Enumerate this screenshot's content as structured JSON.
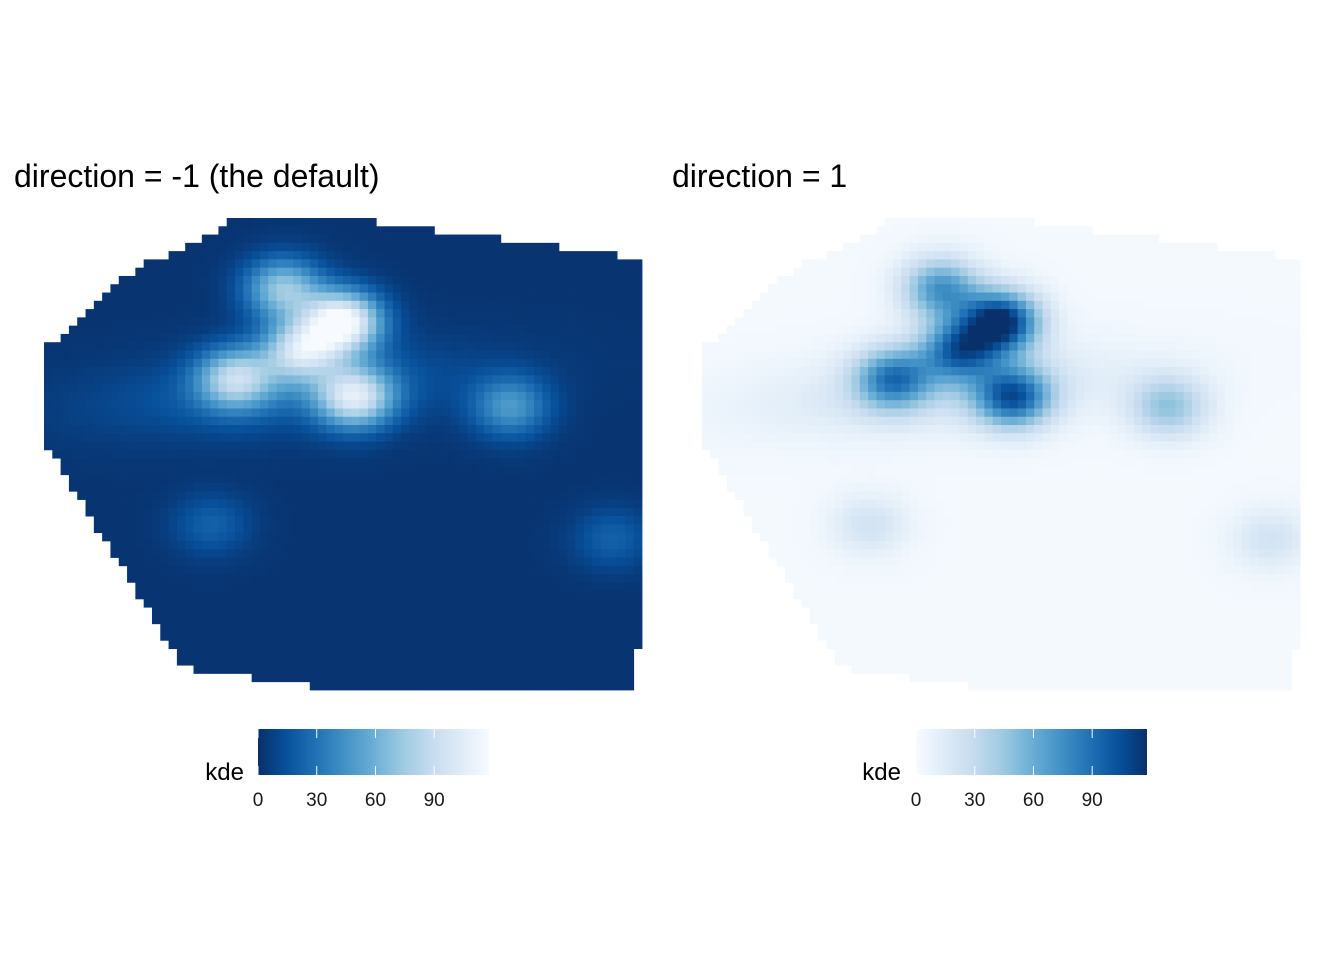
{
  "chart_data": [
    {
      "type": "heatmap",
      "title": "direction = -1 (the default)",
      "fill": "kde",
      "palette": "Blues",
      "direction": -1,
      "legend": {
        "title": "kde",
        "position": "bottom",
        "breaks": [
          0,
          30,
          60,
          90
        ],
        "break_labels": [
          "0",
          "30",
          "60",
          "90"
        ],
        "limits": [
          0,
          118
        ],
        "colors": [
          "#08306b",
          "#08519c",
          "#2171b5",
          "#4292c6",
          "#6baed6",
          "#9ecae1",
          "#c6dbef",
          "#deebf7",
          "#f7fbff"
        ]
      },
      "axes": "none",
      "grid": false,
      "density_peaks": [
        {
          "x": 0.5,
          "y": 0.78,
          "value": 118
        },
        {
          "x": 0.43,
          "y": 0.72,
          "value": 85
        },
        {
          "x": 0.32,
          "y": 0.66,
          "value": 75
        },
        {
          "x": 0.52,
          "y": 0.62,
          "value": 90
        },
        {
          "x": 0.4,
          "y": 0.85,
          "value": 70
        },
        {
          "x": 0.78,
          "y": 0.6,
          "value": 45
        },
        {
          "x": 0.28,
          "y": 0.35,
          "value": 20
        },
        {
          "x": 0.95,
          "y": 0.32,
          "value": 20
        }
      ]
    },
    {
      "type": "heatmap",
      "title": "direction = 1",
      "fill": "kde",
      "palette": "Blues",
      "direction": 1,
      "legend": {
        "title": "kde",
        "position": "bottom",
        "breaks": [
          0,
          30,
          60,
          90
        ],
        "break_labels": [
          "0",
          "30",
          "60",
          "90"
        ],
        "limits": [
          0,
          118
        ],
        "colors": [
          "#f7fbff",
          "#deebf7",
          "#c6dbef",
          "#9ecae1",
          "#6baed6",
          "#4292c6",
          "#2171b5",
          "#08519c",
          "#08306b"
        ]
      },
      "axes": "none",
      "grid": false,
      "density_peaks": [
        {
          "x": 0.5,
          "y": 0.78,
          "value": 118
        },
        {
          "x": 0.43,
          "y": 0.72,
          "value": 85
        },
        {
          "x": 0.32,
          "y": 0.66,
          "value": 75
        },
        {
          "x": 0.52,
          "y": 0.62,
          "value": 90
        },
        {
          "x": 0.4,
          "y": 0.85,
          "value": 70
        },
        {
          "x": 0.78,
          "y": 0.6,
          "value": 45
        },
        {
          "x": 0.28,
          "y": 0.35,
          "value": 20
        },
        {
          "x": 0.95,
          "y": 0.32,
          "value": 20
        }
      ]
    }
  ]
}
